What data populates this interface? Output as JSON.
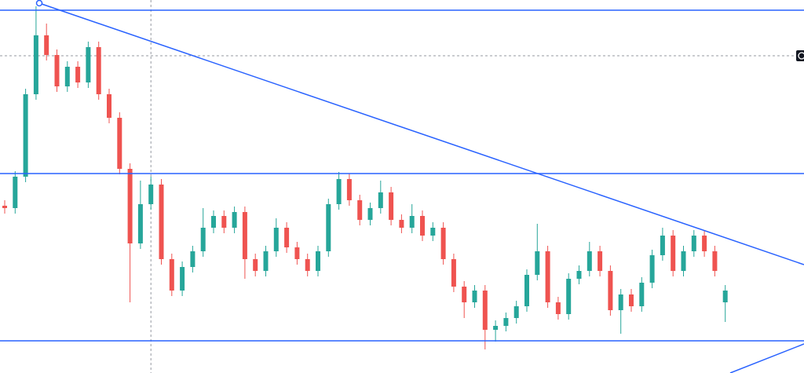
{
  "chart_data": {
    "type": "candlestick",
    "ylim": [
      0,
      475
    ],
    "up_color": "#26a69a",
    "down_color": "#ef5350",
    "line_color": "#2962ff",
    "opens": [
      213,
      210,
      250,
      355,
      430,
      405,
      365,
      390,
      370,
      415,
      355,
      325,
      260,
      165,
      215,
      240,
      145,
      105,
      135,
      155,
      185,
      200,
      185,
      205,
      145,
      130,
      155,
      185,
      160,
      145,
      130,
      155,
      215,
      247,
      220,
      195,
      210,
      230,
      195,
      185,
      200,
      175,
      185,
      145,
      110,
      90,
      105,
      55,
      60,
      70,
      85,
      125,
      155,
      90,
      75,
      120,
      130,
      155,
      130,
      80,
      100,
      85,
      115,
      150,
      175,
      130,
      155,
      175,
      155,
      90
    ],
    "highs": [
      220,
      257,
      362,
      467,
      445,
      412,
      397,
      397,
      422,
      422,
      362,
      332,
      267,
      245,
      250,
      247,
      152,
      142,
      162,
      210,
      207,
      207,
      212,
      212,
      152,
      162,
      197,
      192,
      167,
      152,
      162,
      222,
      256,
      254,
      227,
      217,
      245,
      237,
      202,
      215,
      207,
      192,
      192,
      152,
      117,
      112,
      112,
      67,
      77,
      92,
      132,
      190,
      162,
      97,
      127,
      137,
      167,
      162,
      137,
      107,
      107,
      122,
      157,
      185,
      182,
      162,
      182,
      182,
      162,
      112
    ],
    "lows": [
      203,
      203,
      243,
      348,
      398,
      358,
      358,
      363,
      363,
      348,
      318,
      253,
      90,
      158,
      208,
      138,
      98,
      98,
      128,
      148,
      178,
      178,
      178,
      120,
      123,
      123,
      148,
      153,
      138,
      123,
      123,
      148,
      208,
      213,
      188,
      188,
      203,
      188,
      178,
      178,
      168,
      168,
      138,
      103,
      70,
      83,
      30,
      40,
      53,
      63,
      78,
      118,
      83,
      68,
      68,
      113,
      123,
      123,
      73,
      50,
      78,
      78,
      108,
      143,
      123,
      123,
      148,
      148,
      123,
      65
    ],
    "closes": [
      210,
      250,
      355,
      430,
      405,
      365,
      390,
      370,
      415,
      355,
      325,
      260,
      165,
      215,
      240,
      145,
      105,
      135,
      155,
      185,
      200,
      185,
      205,
      145,
      130,
      155,
      185,
      160,
      145,
      130,
      155,
      215,
      247,
      220,
      195,
      210,
      230,
      195,
      185,
      200,
      175,
      185,
      145,
      110,
      90,
      105,
      55,
      60,
      70,
      85,
      125,
      155,
      90,
      75,
      120,
      130,
      155,
      130,
      80,
      100,
      85,
      115,
      150,
      175,
      130,
      155,
      175,
      155,
      130,
      105
    ],
    "levels": [
      462,
      254,
      41
    ],
    "trend_lines": [
      {
        "x": [
          3.31,
          76.54
        ],
        "y": [
          471,
          138
        ]
      },
      {
        "x": [
          69.47,
          76.54
        ],
        "y": [
          0,
          37
        ]
      }
    ],
    "crosshair": {
      "x": 14,
      "y": 404
    }
  }
}
